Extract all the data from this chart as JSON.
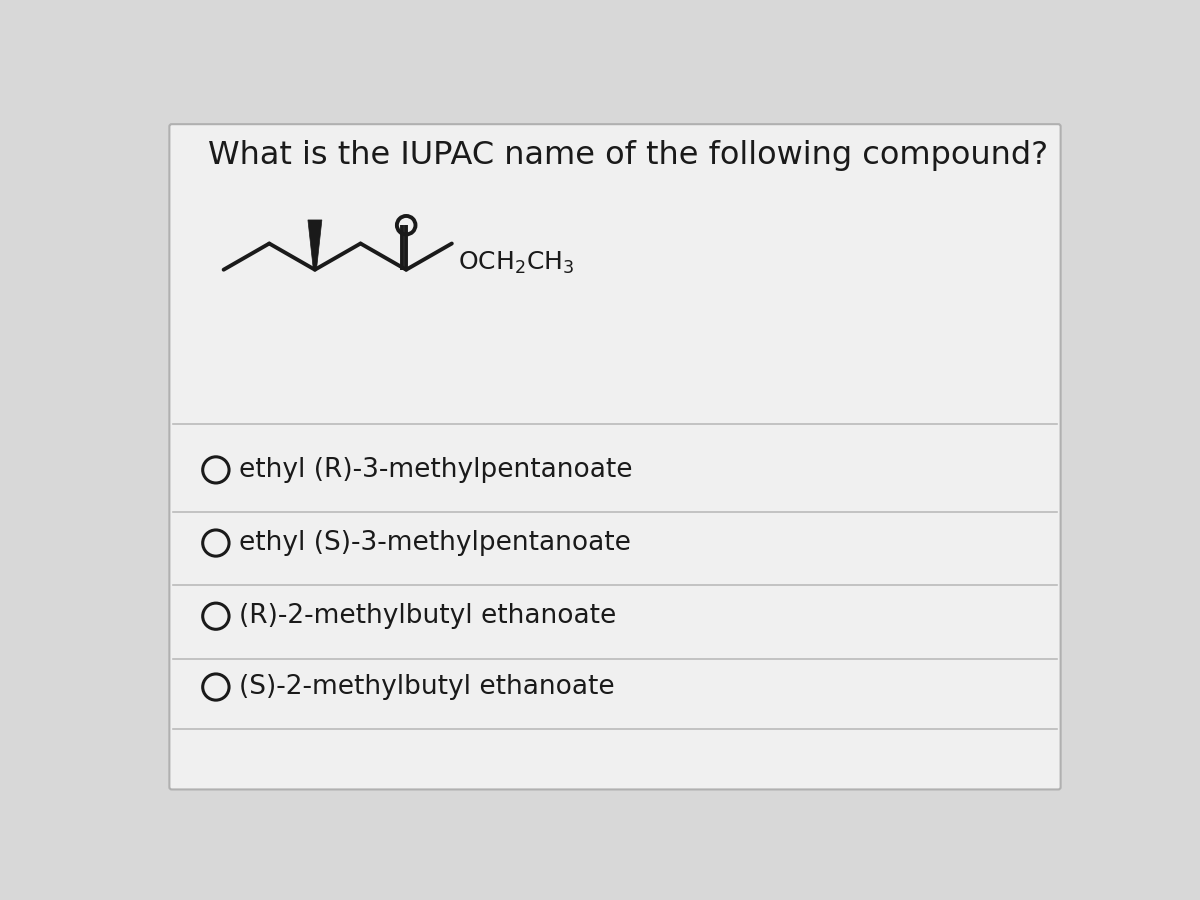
{
  "question": "What is the IUPAC name of the following compound?",
  "options": [
    "ethyl (R)-3-methylpentanoate",
    "ethyl (S)-3-methylpentanoate",
    "(R)-2-methylbutyl ethanoate",
    "(S)-2-methylbutyl ethanoate"
  ],
  "bg_color": "#d8d8d8",
  "card_color": "#f0f0f0",
  "text_color": "#1a1a1a",
  "divider_color": "#bbbbbb",
  "structure_color": "#1a1a1a",
  "option_font_size": 19,
  "title_font_size": 23
}
